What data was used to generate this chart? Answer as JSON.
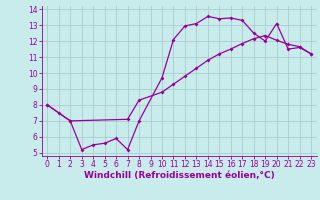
{
  "xlabel": "Windchill (Refroidissement éolien,°C)",
  "xlim": [
    -0.5,
    23.5
  ],
  "ylim": [
    4.8,
    14.2
  ],
  "xticks": [
    0,
    1,
    2,
    3,
    4,
    5,
    6,
    7,
    8,
    9,
    10,
    11,
    12,
    13,
    14,
    15,
    16,
    17,
    18,
    19,
    20,
    21,
    22,
    23
  ],
  "yticks": [
    5,
    6,
    7,
    8,
    9,
    10,
    11,
    12,
    13,
    14
  ],
  "bg_color": "#c8ecec",
  "line_color": "#990099",
  "grid_color": "#aacccc",
  "line1_x": [
    0,
    1,
    2,
    3,
    4,
    5,
    6,
    7,
    8,
    10,
    11,
    12,
    13,
    14,
    15,
    16,
    17,
    18,
    19,
    20,
    21,
    22,
    23
  ],
  "line1_y": [
    8.0,
    7.5,
    7.0,
    5.2,
    5.5,
    5.6,
    5.9,
    5.2,
    7.0,
    9.7,
    12.1,
    12.95,
    13.1,
    13.55,
    13.4,
    13.45,
    13.3,
    12.5,
    12.0,
    13.1,
    11.5,
    11.6,
    11.2
  ],
  "line2_x": [
    0,
    2,
    7,
    8,
    10,
    11,
    12,
    13,
    14,
    15,
    16,
    17,
    18,
    19,
    20,
    21,
    22,
    23
  ],
  "line2_y": [
    8.0,
    7.0,
    7.1,
    8.3,
    8.8,
    9.3,
    9.8,
    10.3,
    10.8,
    11.2,
    11.5,
    11.85,
    12.15,
    12.35,
    12.05,
    11.8,
    11.65,
    11.2
  ],
  "tick_fontsize": 5.5,
  "label_fontsize": 6.5
}
